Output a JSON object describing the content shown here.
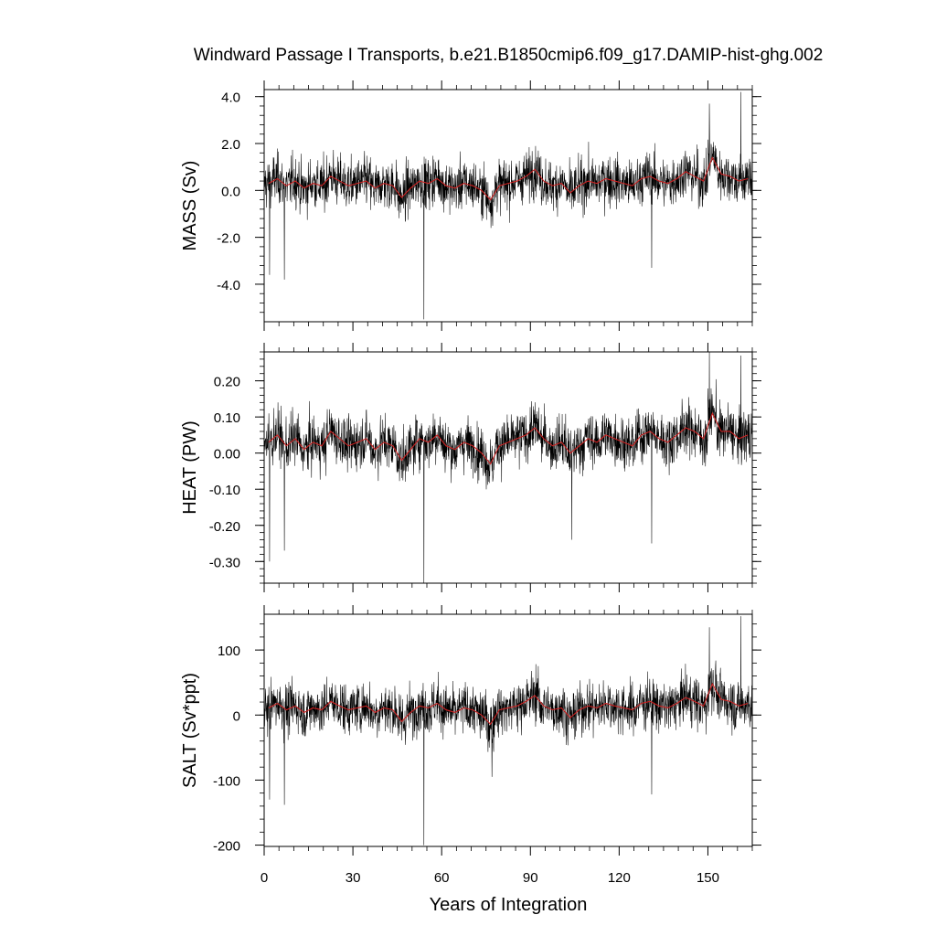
{
  "title": "Windward Passage I Transports, b.e21.B1850cmip6.f09_g17.DAMIP-hist-ghg.002",
  "xlabel": "Years of Integration",
  "colors": {
    "monthly": "#000000",
    "smoothed": "#cc2222",
    "frame": "#000000"
  },
  "chart_data": [
    {
      "type": "line",
      "panel": "mass",
      "ylabel": "MASS (Sv)",
      "xlim": [
        0,
        165
      ],
      "ylim": [
        -5.6,
        4.3
      ],
      "yticks": [
        4.0,
        2.0,
        0.0,
        -2.0,
        -4.0
      ],
      "ytick_labels": [
        "4.0",
        "2.0",
        "0.0",
        "-2.0",
        "-4.0"
      ],
      "grid": false,
      "series": [
        {
          "style": "monthly-thin-black",
          "mean": 0.3,
          "spread": 0.75,
          "extremes": [
            {
              "x": 1.8,
              "y": -3.6
            },
            {
              "x": 6.8,
              "y": -3.8
            },
            {
              "x": 54.0,
              "y": -5.5
            },
            {
              "x": 131.0,
              "y": -3.3
            },
            {
              "x": 150.5,
              "y": 3.7
            },
            {
              "x": 161.2,
              "y": 4.2
            }
          ]
        },
        {
          "style": "smoothed-red",
          "values": [
            0.3,
            0.5,
            0.2,
            0.4,
            0.1,
            0.3,
            0.2,
            0.6,
            0.4,
            0.2,
            0.3,
            0.4,
            0.1,
            0.3,
            0.2,
            -0.3,
            0.1,
            0.4,
            0.3,
            0.5,
            0.2,
            0.1,
            0.3,
            0.2,
            0.0,
            -0.4,
            0.2,
            0.3,
            0.4,
            0.6,
            0.9,
            0.4,
            0.2,
            0.3,
            -0.1,
            0.2,
            0.4,
            0.3,
            0.5,
            0.4,
            0.3,
            0.2,
            0.5,
            0.6,
            0.4,
            0.3,
            0.5,
            0.8,
            0.6,
            0.4,
            1.4,
            0.7,
            0.6,
            0.4,
            0.5
          ]
        }
      ]
    },
    {
      "type": "line",
      "panel": "heat",
      "ylabel": "HEAT (PW)",
      "xlim": [
        0,
        165
      ],
      "ylim": [
        -0.36,
        0.28
      ],
      "yticks": [
        0.2,
        0.1,
        0.0,
        -0.1,
        -0.2,
        -0.3
      ],
      "ytick_labels": [
        "0.20",
        "0.10",
        "0.00",
        "-0.10",
        "-0.20",
        "-0.30"
      ],
      "grid": false,
      "series": [
        {
          "style": "monthly-thin-black",
          "mean": 0.03,
          "spread": 0.05,
          "extremes": [
            {
              "x": 1.8,
              "y": -0.3
            },
            {
              "x": 6.8,
              "y": -0.27
            },
            {
              "x": 54.0,
              "y": -0.36
            },
            {
              "x": 104.0,
              "y": -0.24
            },
            {
              "x": 131.0,
              "y": -0.25
            },
            {
              "x": 150.5,
              "y": 0.28
            },
            {
              "x": 161.2,
              "y": 0.27
            }
          ]
        },
        {
          "style": "smoothed-red",
          "values": [
            0.03,
            0.05,
            0.02,
            0.04,
            0.01,
            0.03,
            0.02,
            0.06,
            0.04,
            0.02,
            0.03,
            0.04,
            0.01,
            0.03,
            0.02,
            -0.02,
            0.01,
            0.04,
            0.03,
            0.05,
            0.02,
            0.01,
            0.03,
            0.02,
            0.0,
            -0.03,
            0.02,
            0.03,
            0.04,
            0.05,
            0.07,
            0.04,
            0.02,
            0.03,
            0.0,
            0.02,
            0.04,
            0.03,
            0.05,
            0.04,
            0.03,
            0.02,
            0.05,
            0.06,
            0.04,
            0.03,
            0.05,
            0.07,
            0.06,
            0.04,
            0.11,
            0.06,
            0.06,
            0.04,
            0.05
          ]
        }
      ]
    },
    {
      "type": "line",
      "panel": "salt",
      "ylabel": "SALT (Sv*ppt)",
      "xlim": [
        0,
        165
      ],
      "ylim": [
        -202,
        155
      ],
      "yticks": [
        100,
        0,
        -100,
        -200
      ],
      "ytick_labels": [
        "100",
        "0",
        "-100",
        "-200"
      ],
      "grid": false,
      "series": [
        {
          "style": "monthly-thin-black",
          "mean": 11,
          "spread": 27,
          "extremes": [
            {
              "x": 1.8,
              "y": -130
            },
            {
              "x": 6.8,
              "y": -138
            },
            {
              "x": 54.0,
              "y": -200
            },
            {
              "x": 77.0,
              "y": -95
            },
            {
              "x": 131.0,
              "y": -122
            },
            {
              "x": 150.5,
              "y": 135
            },
            {
              "x": 161.2,
              "y": 152
            }
          ]
        },
        {
          "style": "smoothed-red",
          "values": [
            11,
            18,
            8,
            14,
            4,
            11,
            8,
            21,
            14,
            8,
            11,
            14,
            4,
            11,
            8,
            -10,
            4,
            14,
            11,
            18,
            8,
            4,
            11,
            8,
            0,
            -14,
            8,
            11,
            14,
            21,
            30,
            14,
            8,
            11,
            -4,
            8,
            14,
            11,
            18,
            14,
            11,
            8,
            18,
            21,
            14,
            11,
            18,
            27,
            21,
            14,
            48,
            24,
            21,
            14,
            18
          ]
        }
      ]
    }
  ],
  "x_axis": {
    "ticks": [
      0,
      30,
      60,
      90,
      120,
      150
    ],
    "tick_labels": [
      "0",
      "30",
      "60",
      "90",
      "120",
      "150"
    ]
  }
}
